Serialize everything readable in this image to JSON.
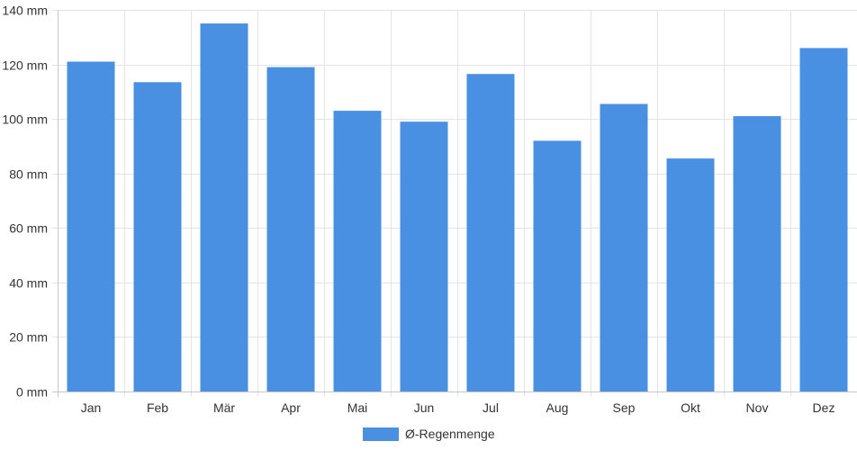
{
  "chart_data": {
    "type": "bar",
    "categories": [
      "Jan",
      "Feb",
      "Mär",
      "Apr",
      "Mai",
      "Jun",
      "Jul",
      "Aug",
      "Sep",
      "Okt",
      "Nov",
      "Dez"
    ],
    "series": [
      {
        "name": "Ø-Regenmenge",
        "values": [
          121,
          113.5,
          135,
          119,
          103,
          99,
          116.5,
          92,
          105.5,
          85.5,
          101,
          126
        ],
        "color": "#4a90e2"
      }
    ],
    "y_unit": " mm",
    "ylim": [
      0,
      140
    ],
    "y_ticks": [
      0,
      20,
      40,
      60,
      80,
      100,
      120,
      140
    ],
    "grid": true,
    "legend_position": "bottom-center"
  }
}
